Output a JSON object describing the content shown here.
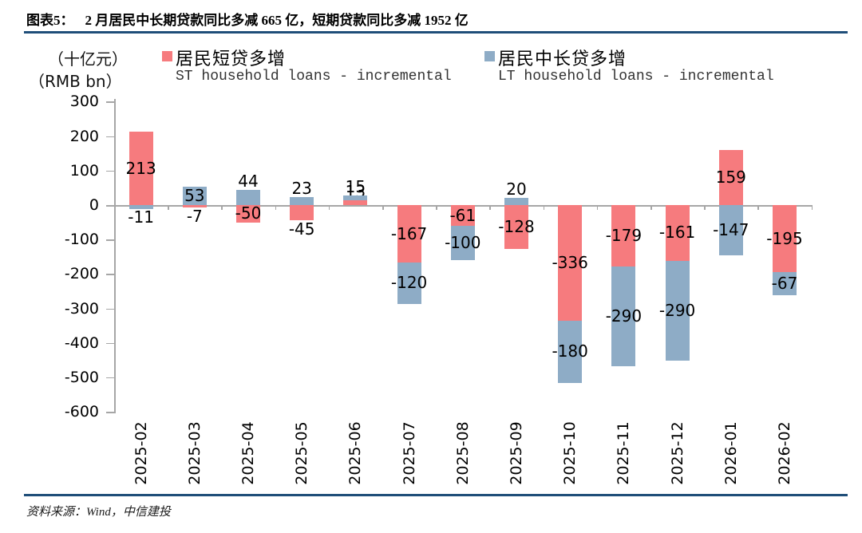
{
  "page": {
    "title_prefix": "图表5：",
    "title_text": "2 月居民中长期贷款同比多减 665 亿，短期贷款同比多减 1952 亿",
    "footer": "资料来源：Wind，中信建投"
  },
  "chart_data": {
    "type": "bar",
    "stacked": true,
    "title": "2 月居民中长期贷款同比多减 665 亿，短期贷款同比多减 1952 亿",
    "unit_label_cn": "（十亿元）",
    "unit_label_en": "（RMB bn）",
    "categories": [
      "2025-02",
      "2025-03",
      "2025-04",
      "2025-05",
      "2025-06",
      "2025-07",
      "2025-08",
      "2025-09",
      "2025-10",
      "2025-11",
      "2025-12",
      "2026-01",
      "2026-02"
    ],
    "series": [
      {
        "name": "居民短贷多增",
        "name_en": "ST household loans - incremental",
        "color": "#F67B7E",
        "values": [
          213,
          -7,
          -50,
          -45,
          13,
          -167,
          -61,
          -128,
          -336,
          -179,
          -161,
          159,
          -195
        ]
      },
      {
        "name": "居民中长贷多增",
        "name_en": "LT household loans - incremental",
        "color": "#8EACC6",
        "values": [
          -11,
          53,
          44,
          23,
          15,
          -120,
          -100,
          20,
          -180,
          -290,
          -290,
          -147,
          -67
        ]
      }
    ],
    "ylim": [
      -600,
      300
    ],
    "ytick_step": 100,
    "grid": false,
    "legend_position": "top",
    "axis_color": "#A6A6A6",
    "accent_rule_color": "#1F4E79"
  }
}
